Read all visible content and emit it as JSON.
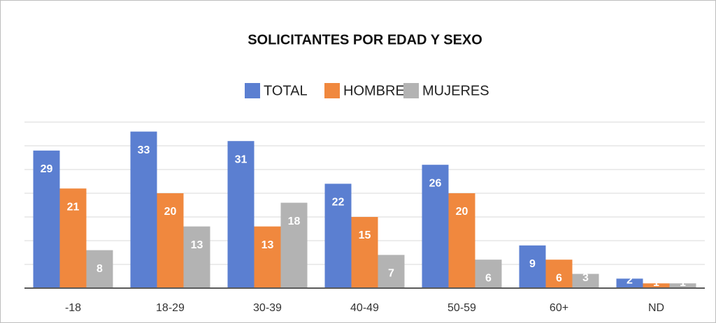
{
  "chart_data": {
    "type": "bar",
    "title": "SOLICITANTES POR EDAD Y SEXO",
    "categories": [
      "-18",
      "18-29",
      "30-39",
      "40-49",
      "50-59",
      "60+",
      "ND"
    ],
    "series": [
      {
        "name": "TOTAL",
        "color": "#5b7fd1",
        "values": [
          29,
          33,
          31,
          22,
          26,
          9,
          2
        ]
      },
      {
        "name": "HOMBRE",
        "color": "#f0883e",
        "values": [
          21,
          20,
          13,
          15,
          20,
          6,
          1
        ]
      },
      {
        "name": "MUJERES",
        "color": "#b3b3b3",
        "values": [
          8,
          13,
          18,
          7,
          6,
          3,
          1
        ]
      }
    ],
    "ylim": [
      0,
      35
    ],
    "yticks": [
      0,
      5,
      10,
      15,
      20,
      25,
      30,
      35
    ],
    "grid": true,
    "legend": "top"
  }
}
